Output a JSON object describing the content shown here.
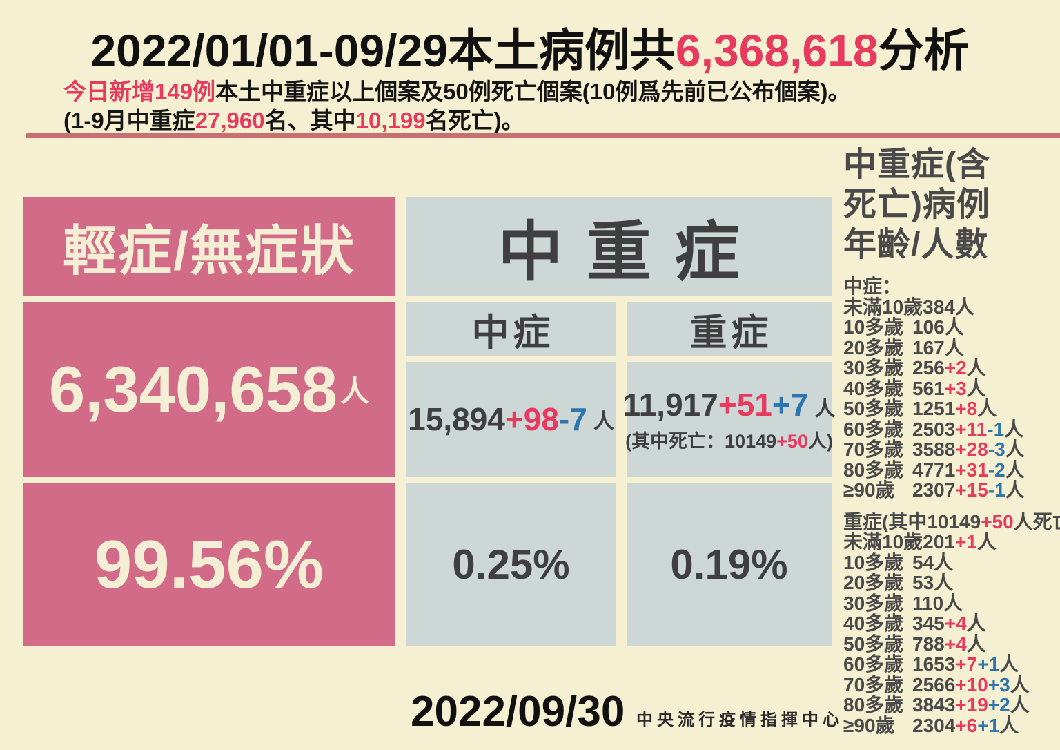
{
  "colors": {
    "background": "#f6f0d2",
    "pink": "#d26b87",
    "cream_text": "#f4eed4",
    "gray_blue": "#ccd7d6",
    "dark_text": "#3f3f3f",
    "red_accent": "#e8395e",
    "blue_accent": "#2e75ad",
    "divider": "#c76f72"
  },
  "title": {
    "part1": "2022/01/01-09/29本土病例共",
    "highlight": "6,368,618",
    "part2": "分析"
  },
  "subtitle_line1": {
    "red": "今日新增149例",
    "rest": "本土中重症以上個案及50例死亡個案(10例爲先前已公布個案)。"
  },
  "subtitle_line2": {
    "p1": "(1-9月中重症",
    "r1": "27,960",
    "p2": "名、其中",
    "r2": "10,199",
    "p3": "名死亡)。"
  },
  "mild": {
    "header": "輕症/無症狀",
    "count": "6,340,658",
    "unit": "人",
    "percent": "99.56%"
  },
  "moderate_severe": {
    "header": "中重症",
    "moderate": {
      "label": "中症",
      "base": "15,894",
      "delta_red": "+98",
      "delta_blue": "-7",
      "unit": "人",
      "percent": "0.25%"
    },
    "severe": {
      "label": "重症",
      "base": "11,917",
      "delta_red": "+51",
      "delta_blue": "+7",
      "unit": "人",
      "note_pre": "(其中死亡：10149",
      "note_red": "+50",
      "note_post": "人)",
      "percent": "0.19%"
    }
  },
  "sidebar": {
    "title_lines": [
      "中重症(含",
      "死亡)病例",
      "年齡/人數"
    ],
    "moderate_label": "中症：",
    "moderate_list": [
      {
        "age": "未滿10歲",
        "base": "384",
        "red": "",
        "blue": "",
        "unit": "人"
      },
      {
        "age": "10多歲",
        "base": "106",
        "red": "",
        "blue": "",
        "unit": "人"
      },
      {
        "age": "20多歲",
        "base": "167",
        "red": "",
        "blue": "",
        "unit": "人"
      },
      {
        "age": "30多歲",
        "base": "256",
        "red": "+2",
        "blue": "",
        "unit": "人"
      },
      {
        "age": "40多歲",
        "base": "561",
        "red": "+3",
        "blue": "",
        "unit": "人"
      },
      {
        "age": "50多歲",
        "base": "1251",
        "red": "+8",
        "blue": "",
        "unit": "人"
      },
      {
        "age": "60多歲",
        "base": "2503",
        "red": "+11",
        "blue": "-1",
        "unit": "人"
      },
      {
        "age": "70多歲",
        "base": "3588",
        "red": "+28",
        "blue": "-3",
        "unit": "人"
      },
      {
        "age": "80多歲",
        "base": "4771",
        "red": "+31",
        "blue": "-2",
        "unit": "人"
      },
      {
        "age": "≥90歲",
        "base": "2307",
        "red": "+15",
        "blue": "-1",
        "unit": "人"
      }
    ],
    "severe_header": {
      "pre": "重症(其中10149",
      "red": "+50",
      "post": "人死亡)："
    },
    "severe_list": [
      {
        "age": "未滿10歲",
        "base": "201",
        "red": "+1",
        "blue": "",
        "unit": "人"
      },
      {
        "age": "10多歲",
        "base": "54",
        "red": "",
        "blue": "",
        "unit": "人"
      },
      {
        "age": "20多歲",
        "base": "53",
        "red": "",
        "blue": "",
        "unit": "人"
      },
      {
        "age": "30多歲",
        "base": "110",
        "red": "",
        "blue": "",
        "unit": "人"
      },
      {
        "age": "40多歲",
        "base": "345",
        "red": "+4",
        "blue": "",
        "unit": "人"
      },
      {
        "age": "50多歲",
        "base": "788",
        "red": "+4",
        "blue": "",
        "unit": "人"
      },
      {
        "age": "60多歲",
        "base": "1653",
        "red": "+7",
        "blue": "+1",
        "unit": "人"
      },
      {
        "age": "70多歲",
        "base": "2566",
        "red": "+10",
        "blue": "+3",
        "unit": "人"
      },
      {
        "age": "80多歲",
        "base": "3843",
        "red": "+19",
        "blue": "+2",
        "unit": "人"
      },
      {
        "age": "≥90歲",
        "base": "2304",
        "red": "+6",
        "blue": "+1",
        "unit": "人"
      }
    ]
  },
  "footer": {
    "date": "2022/09/30",
    "org": "中央流行疫情指揮中心"
  },
  "chart_data": {
    "type": "table",
    "title": "2022/01/01-09/29本土病例共6,368,618分析",
    "summary": {
      "categories": [
        "輕症/無症狀",
        "中症",
        "重症"
      ],
      "counts": [
        6340658,
        15894,
        11917
      ],
      "new_today": [
        null,
        98,
        51
      ],
      "corrections": [
        null,
        -7,
        7
      ],
      "percents": [
        99.56,
        0.25,
        0.19
      ],
      "deaths_within_severe": 10149,
      "deaths_new_today": 50
    },
    "age_breakdown": {
      "categories": [
        "未滿10歲",
        "10多歲",
        "20多歲",
        "30多歲",
        "40多歲",
        "50多歲",
        "60多歲",
        "70多歲",
        "80多歲",
        "≥90歲"
      ],
      "series": [
        {
          "name": "中症",
          "values": [
            384,
            106,
            167,
            256,
            561,
            1251,
            2503,
            3588,
            4771,
            2307
          ]
        },
        {
          "name": "中症新增(紅)",
          "values": [
            0,
            0,
            0,
            2,
            3,
            8,
            11,
            28,
            31,
            15
          ]
        },
        {
          "name": "中症校正(藍)",
          "values": [
            0,
            0,
            0,
            0,
            0,
            0,
            -1,
            -3,
            -2,
            -1
          ]
        },
        {
          "name": "重症",
          "values": [
            201,
            54,
            53,
            110,
            345,
            788,
            1653,
            2566,
            3843,
            2304
          ]
        },
        {
          "name": "重症新增(紅)",
          "values": [
            1,
            0,
            0,
            0,
            4,
            4,
            7,
            10,
            19,
            6
          ]
        },
        {
          "name": "重症校正(藍)",
          "values": [
            0,
            0,
            0,
            0,
            0,
            0,
            1,
            3,
            2,
            1
          ]
        }
      ]
    }
  }
}
